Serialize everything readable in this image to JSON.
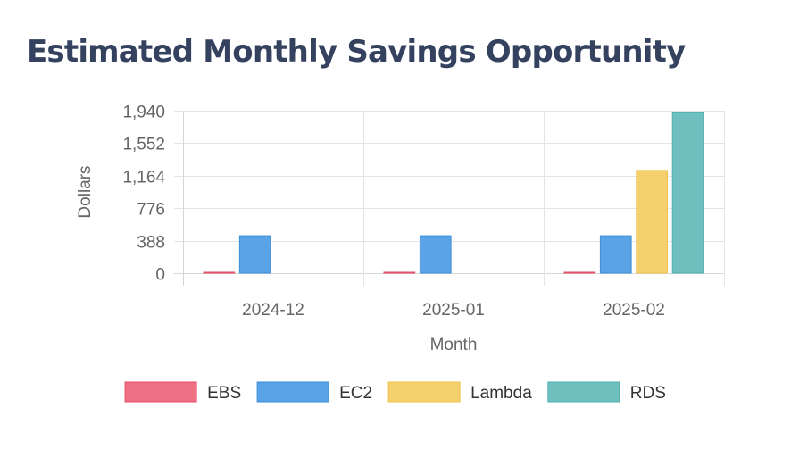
{
  "title": "Estimated Monthly Savings Opportunity",
  "chart_data": {
    "type": "bar",
    "categories": [
      "2024-12",
      "2025-01",
      "2025-02"
    ],
    "series": [
      {
        "name": "EBS",
        "color": "#ef6f84",
        "border": "#e64f6a",
        "values": [
          2,
          2,
          2
        ]
      },
      {
        "name": "EC2",
        "color": "#5aa3e6",
        "border": "#3b8fd9",
        "values": [
          447,
          447,
          447
        ]
      },
      {
        "name": "Lambda",
        "color": "#f7d06e",
        "border": "#efc24e",
        "values": [
          0,
          0,
          1227
        ]
      },
      {
        "name": "RDS",
        "color": "#6fbfbf",
        "border": "#4fb0b0",
        "values": [
          0,
          0,
          1915
        ]
      }
    ],
    "xlabel": "Month",
    "ylabel": "Dollars",
    "yticks": [
      "0",
      "388",
      "776",
      "1,164",
      "1,552",
      "1,940"
    ],
    "ylim": [
      0,
      1940
    ],
    "grid": true,
    "legend": "bottom"
  }
}
